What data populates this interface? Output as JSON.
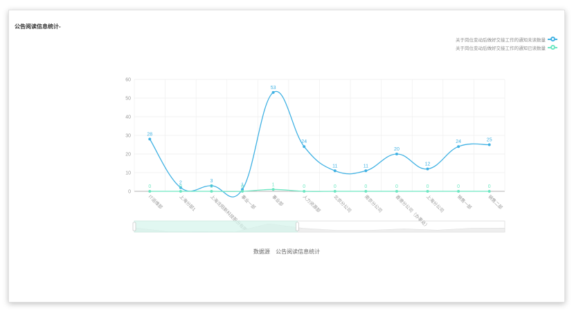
{
  "panel_title": "公告阅读信息统计-",
  "colors": {
    "unread": "#3fb1e3",
    "read": "#6be6c1",
    "grid": "#eeeeee",
    "axis": "#999999",
    "slider_fill": "#d4f3eb"
  },
  "legend": [
    {
      "label": "关于岗位变动后做好交接工作的通知未读数量",
      "color": "#3fb1e3",
      "icon": "circle"
    },
    {
      "label": "关于岗位变动后做好交接工作的通知已读数量",
      "color": "#6be6c1",
      "icon": "circle"
    }
  ],
  "chart_data": {
    "type": "line",
    "smooth": true,
    "categories": [
      "IT运维部",
      "上海分部1",
      "上海沈阳新科技股份有限",
      "事业一部",
      "事业部",
      "人力资源部",
      "北京分公司",
      "南京分公司",
      "香港分公司（办事处）",
      "上海分公司",
      "销售一部",
      "销售二部"
    ],
    "series": [
      {
        "name": "关于岗位变动后做好交接工作的通知未读数量",
        "values": [
          28,
          2,
          3,
          1,
          53,
          24,
          11,
          11,
          20,
          12,
          24,
          25
        ]
      },
      {
        "name": "关于岗位变动后做好交接工作的通知已读数量",
        "values": [
          0,
          0,
          0,
          0,
          1,
          0,
          0,
          0,
          0,
          0,
          0,
          0
        ]
      }
    ],
    "ylim": [
      0,
      60
    ],
    "yticks": [
      0,
      10,
      20,
      30,
      40,
      50,
      60
    ],
    "grid": true,
    "legend_position": "top-right",
    "xlabel": "",
    "ylabel": "",
    "data_zoom": {
      "start": 0,
      "end": 0.44
    }
  },
  "source": {
    "label": "数据源",
    "value": "公告阅读信息统计"
  }
}
